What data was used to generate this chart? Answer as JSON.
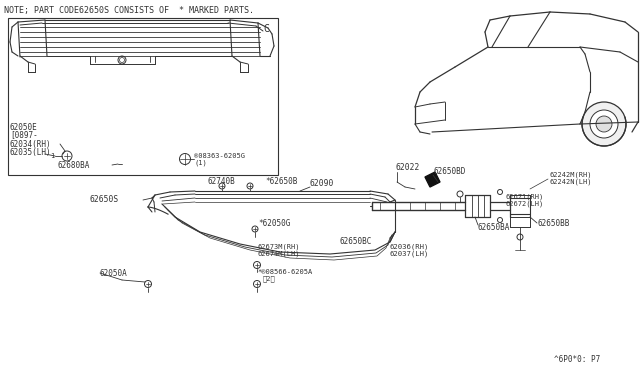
{
  "bg_color": "#ffffff",
  "line_color": "#333333",
  "text_color": "#333333",
  "note_text": "NOTE; PART CODE62650S CONSISTS OF  * MARKED PARTS.",
  "footer_text": "^6P0*0: P7",
  "box_label": "C",
  "parts": {
    "62050E": "62050E\n[0897-",
    "62034": "62034(RH)",
    "62035": "62035(LH)",
    "08363": "®08363-6205G\n        (1)",
    "62680BA": "62680BA",
    "62740B": "62740B",
    "62650S": "62650S",
    "62090": "62090",
    "62650B": "*62650B",
    "62050G": "*62050G",
    "62050A": "62050A",
    "08566": "*®08566-6205A\n       （2）",
    "62673M": "62673M(RH)\n62674M(LH)",
    "62650BC": "62650BC",
    "62036": "62036(RH)\n62037(LH)",
    "62022": "62022",
    "62650BD": "62650BD",
    "62242M": "62242M(RH)\n62242N(LH)",
    "62671": "62671(RH)\n62672(LH)",
    "62650BB": "62650BB",
    "62650BA": "62650BA"
  }
}
